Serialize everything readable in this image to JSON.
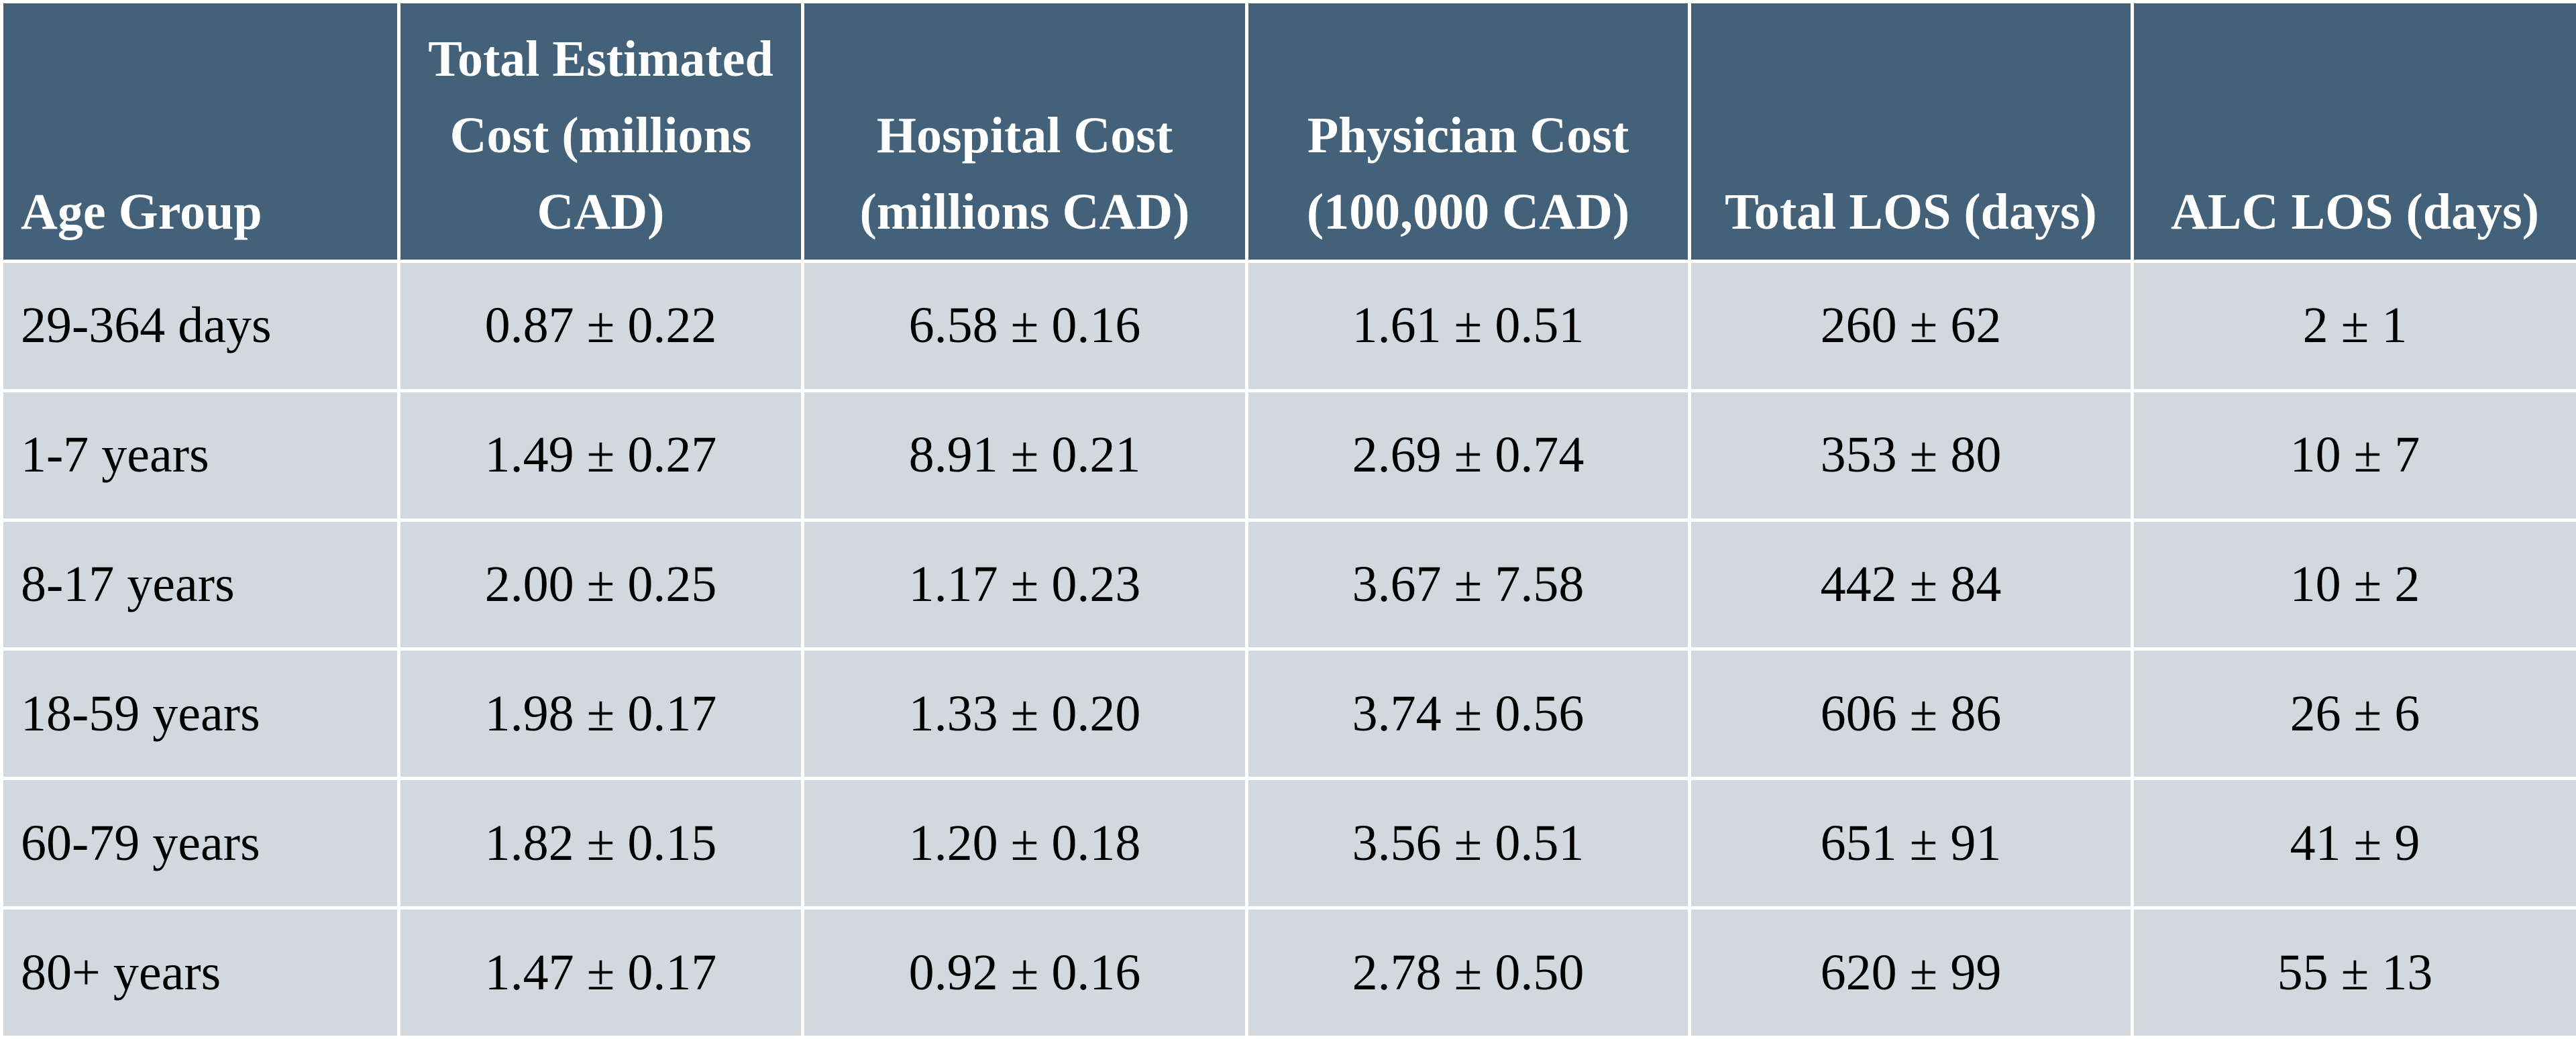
{
  "table": {
    "headers": [
      [
        "Age Group"
      ],
      [
        "Total Estimated",
        "Cost (millions",
        "CAD)"
      ],
      [
        "Hospital Cost",
        "(millions CAD)"
      ],
      [
        "Physician Cost",
        "(100,000 CAD)"
      ],
      [
        "Total LOS (days)"
      ],
      [
        "ALC LOS (days)"
      ]
    ],
    "rows": [
      [
        "29-364 days",
        "0.87 ± 0.22",
        "6.58 ± 0.16",
        "1.61 ± 0.51",
        "260 ± 62",
        "2 ± 1"
      ],
      [
        "1-7 years",
        "1.49 ± 0.27",
        "8.91 ± 0.21",
        "2.69 ± 0.74",
        "353 ± 80",
        "10 ± 7"
      ],
      [
        "8-17 years",
        "2.00 ± 0.25",
        "1.17 ± 0.23",
        "3.67 ± 7.58",
        "442 ± 84",
        "10 ± 2"
      ],
      [
        "18-59 years",
        "1.98 ± 0.17",
        "1.33 ± 0.20",
        "3.74 ± 0.56",
        "606 ± 86",
        "26 ± 6"
      ],
      [
        "60-79 years",
        "1.82 ± 0.15",
        "1.20 ± 0.18",
        "3.56 ± 0.51",
        "651 ± 91",
        "41 ± 9"
      ],
      [
        "80+ years",
        "1.47 ± 0.17",
        "0.92 ± 0.16",
        "2.78 ± 0.50",
        "620 ± 99",
        "55 ± 13"
      ]
    ]
  },
  "colors": {
    "header_bg": "#44617a",
    "header_text": "#ffffff",
    "cell_bg": "#d2d8de",
    "cell_text": "#000000",
    "grid": "#ffffff"
  }
}
